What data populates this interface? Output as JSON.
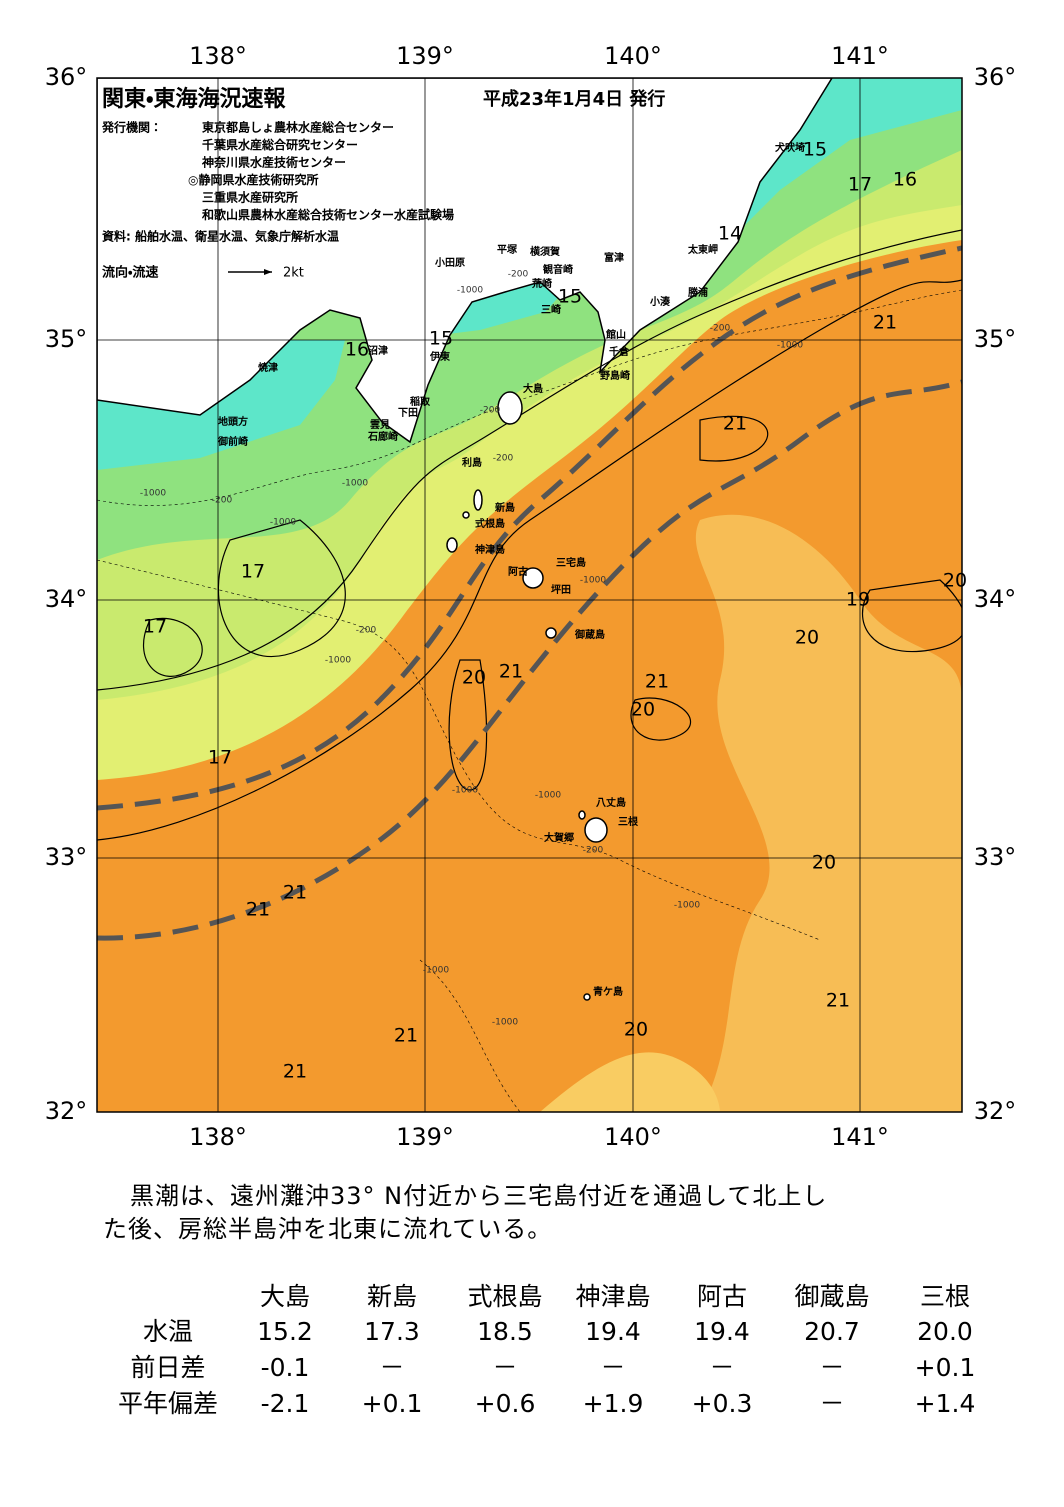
{
  "header": {
    "title": "関東・東海海況速報",
    "date": "平成23年1月4日 発行",
    "issuer_label": "発行機関：",
    "issuers": [
      "東京都島しょ農林水産総合センター",
      "千葉県水産総合研究センター",
      "神奈川県水産技術センター",
      "◎静岡県水産技術研究所",
      "三重県水産研究所",
      "和歌山県農林水産総合技術センター水産試験場"
    ],
    "source": "資料: 船舶水温、衛星水温、気象庁解析水温",
    "legend_label": "流向・流速",
    "legend_scale": "2kt"
  },
  "map": {
    "lon_labels": [
      "138°",
      "139°",
      "140°",
      "141°"
    ],
    "lat_labels": [
      "36°",
      "35°",
      "34°",
      "33°",
      "32°"
    ],
    "places": [
      "犬吠埼",
      "太東岬",
      "勝浦",
      "小湊",
      "富津",
      "横須賀",
      "平塚",
      "観音崎",
      "荒崎",
      "三崎",
      "小田原",
      "館山",
      "千倉",
      "野島崎",
      "大島",
      "稲取",
      "下田",
      "雲見",
      "石廊崎",
      "伊東",
      "沼津",
      "焼津",
      "地頭方",
      "御前崎",
      "利島",
      "新島",
      "式根島",
      "神津島",
      "三宅島",
      "阿古",
      "坪田",
      "御蔵島",
      "八丈島",
      "三根",
      "大賀郷",
      "青ケ島"
    ],
    "isotherm_labels": [
      15,
      17,
      16,
      14,
      15,
      21,
      15,
      16,
      21,
      17,
      19,
      17,
      20,
      20,
      21,
      21,
      20,
      17,
      20,
      21,
      21,
      21,
      21,
      20,
      21,
      20
    ],
    "depth_labels": [
      -200,
      -1000,
      -200,
      -1000,
      -200,
      -200,
      -1000,
      -1000,
      -200,
      -1000,
      -200,
      -1000,
      -1000,
      -1000,
      -1000,
      -200,
      -1000,
      -1000,
      -1000
    ]
  },
  "summary": [
    "黒潮は、遠州灘沖33° N付近から三宅島付近を通過して北上し",
    "た後、房総半島沖を北東に流れている。"
  ],
  "table": {
    "columns": [
      "大島",
      "新島",
      "式根島",
      "神津島",
      "阿古",
      "御蔵島",
      "三根"
    ],
    "rows": [
      {
        "label": "水温",
        "cells": [
          "15.2",
          "17.3",
          "18.5",
          "19.4",
          "19.4",
          "20.7",
          "20.0"
        ]
      },
      {
        "label": "前日差",
        "cells": [
          "-0.1",
          "－",
          "－",
          "－",
          "－",
          "－",
          "+0.1"
        ]
      },
      {
        "label": "平年偏差",
        "cells": [
          "-2.1",
          "+0.1",
          "+0.6",
          "+1.9",
          "+0.3",
          "－",
          "+1.4"
        ]
      }
    ]
  }
}
